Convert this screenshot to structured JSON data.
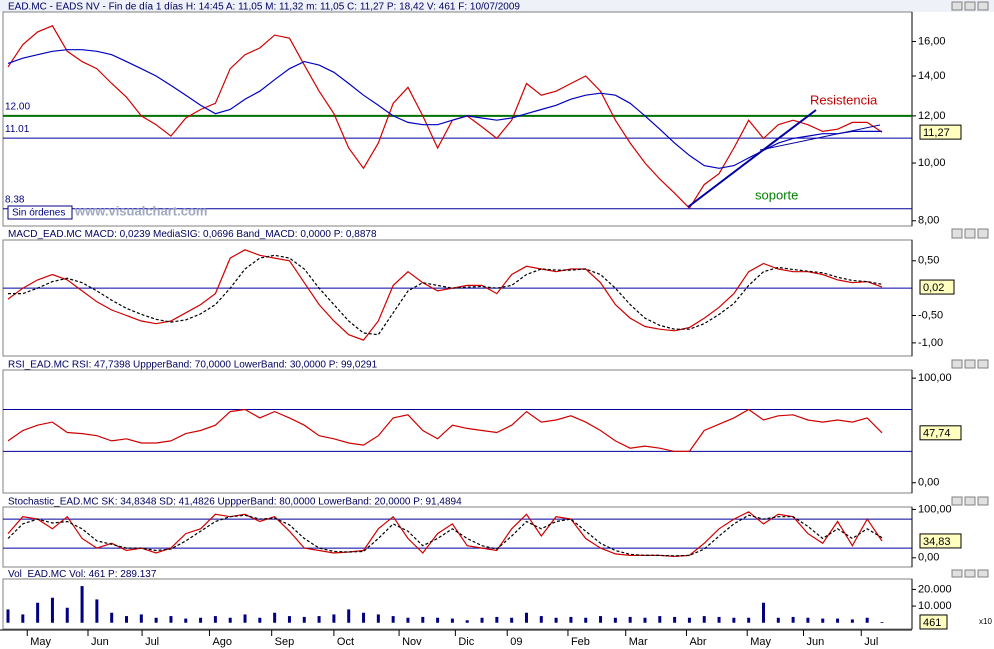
{
  "chart_data": [
    {
      "type": "line",
      "title": "EAD.MC - EADS NV - Fin de día 1 días H: 14:45 A: 11,05 M: 11,32 m: 11,05 C: 11,27 P: 18,42 V: 461 F: 10/07/2009",
      "log": true,
      "ylim": [
        7.84,
        17.93
      ],
      "yticks": [
        {
          "value": 8,
          "label": "8,00"
        },
        {
          "value": 10,
          "label": "10,00"
        },
        {
          "value": 12,
          "label": "12,00"
        },
        {
          "value": 14,
          "label": "14,00"
        },
        {
          "value": 16,
          "label": "16,00"
        }
      ],
      "series": [
        {
          "color": "#d00000",
          "values": [
            14.5,
            15.8,
            16.6,
            17.0,
            15.4,
            14.8,
            14.4,
            13.6,
            12.9,
            12.0,
            11.6,
            11.1,
            11.9,
            12.3,
            12.6,
            14.4,
            15.2,
            15.6,
            16.4,
            16.2,
            14.6,
            13.2,
            12.1,
            10.6,
            9.8,
            10.8,
            12.6,
            13.4,
            12.0,
            10.6,
            11.8,
            12.0,
            11.5,
            11.0,
            11.8,
            13.6,
            13.0,
            13.2,
            13.6,
            14.0,
            13.2,
            11.8,
            10.8,
            10.0,
            9.4,
            8.9,
            8.4,
            9.2,
            9.6,
            10.6,
            11.8,
            11.0,
            11.6,
            11.8,
            11.6,
            11.3,
            11.4,
            11.7,
            11.7,
            11.27
          ]
        },
        {
          "color": "#0000c0",
          "values": [
            14.7,
            15.0,
            15.2,
            15.4,
            15.5,
            15.5,
            15.4,
            15.2,
            14.8,
            14.4,
            14.0,
            13.5,
            13.0,
            12.5,
            12.1,
            12.3,
            12.8,
            13.2,
            13.8,
            14.4,
            14.8,
            14.6,
            14.2,
            13.6,
            13.0,
            12.5,
            12.0,
            11.7,
            11.6,
            11.6,
            11.8,
            12.0,
            11.9,
            11.8,
            11.9,
            12.1,
            12.3,
            12.5,
            12.8,
            13.0,
            13.1,
            13.0,
            12.6,
            12.0,
            11.4,
            10.8,
            10.3,
            9.9,
            9.8,
            9.9,
            10.2,
            10.5,
            10.8,
            11.0,
            11.1,
            11.2,
            11.2,
            11.3,
            11.3,
            11.3
          ]
        }
      ],
      "bands": [
        {
          "value": 12.0,
          "label": "12.00",
          "color": "#007000"
        },
        {
          "value": 11.01,
          "label": "11.01",
          "color": "#0000a0"
        },
        {
          "value": 8.38,
          "label": "8.38",
          "color": "#0000a0"
        }
      ],
      "last_label": "11,27",
      "annotations": [
        {
          "text": "Resistencia",
          "color": "#c00000"
        },
        {
          "text": "soporte",
          "color": "#008000"
        }
      ],
      "status": "Sin órdenes",
      "watermark": "www.visualchart.com"
    },
    {
      "type": "line",
      "title": "MACD_EAD.MC MACD: 0,0239 MediaSIG: 0,0696 Band_MACD: 0,0000 P: 0,8878",
      "ylim": [
        -1.24,
        0.88
      ],
      "yticks": [
        {
          "value": -1,
          "label": "-1,00"
        },
        {
          "value": -0.5,
          "label": "-0,50"
        },
        {
          "value": 0.5,
          "label": "0,50"
        }
      ],
      "series": [
        {
          "color": "#d00000",
          "values": [
            -0.2,
            0.0,
            0.15,
            0.25,
            0.15,
            -0.05,
            -0.25,
            -0.4,
            -0.5,
            -0.6,
            -0.65,
            -0.6,
            -0.45,
            -0.3,
            -0.1,
            0.55,
            0.7,
            0.6,
            0.55,
            0.5,
            0.1,
            -0.3,
            -0.6,
            -0.85,
            -0.95,
            -0.6,
            0.05,
            0.3,
            0.1,
            -0.05,
            0.0,
            0.05,
            0.05,
            -0.1,
            0.25,
            0.4,
            0.35,
            0.3,
            0.35,
            0.35,
            0.1,
            -0.3,
            -0.55,
            -0.7,
            -0.75,
            -0.78,
            -0.72,
            -0.55,
            -0.35,
            -0.1,
            0.3,
            0.45,
            0.35,
            0.3,
            0.3,
            0.25,
            0.15,
            0.1,
            0.12,
            0.02
          ]
        },
        {
          "color": "#000000",
          "dash": true,
          "values": [
            -0.1,
            -0.1,
            0.0,
            0.12,
            0.18,
            0.1,
            -0.05,
            -0.22,
            -0.37,
            -0.48,
            -0.57,
            -0.62,
            -0.58,
            -0.47,
            -0.3,
            0.0,
            0.35,
            0.55,
            0.6,
            0.55,
            0.35,
            0.0,
            -0.3,
            -0.6,
            -0.82,
            -0.85,
            -0.45,
            -0.05,
            0.1,
            0.05,
            0.0,
            0.02,
            0.03,
            0.0,
            0.05,
            0.25,
            0.35,
            0.33,
            0.33,
            0.35,
            0.25,
            0.0,
            -0.3,
            -0.55,
            -0.68,
            -0.75,
            -0.75,
            -0.65,
            -0.48,
            -0.28,
            0.05,
            0.3,
            0.38,
            0.34,
            0.31,
            0.28,
            0.2,
            0.14,
            0.12,
            0.07
          ]
        }
      ],
      "bands": [
        {
          "value": 0,
          "color": "#0000a0"
        }
      ],
      "last_label": "0,02"
    },
    {
      "type": "line",
      "title": "RSI_EAD.MC RSI: 47,7398 UppperBand: 70,0000 LowerBand: 30,0000 P: 99,0291",
      "ylim": [
        -9.8,
        107.8
      ],
      "yticks": [
        {
          "value": 0,
          "label": "0,00"
        },
        {
          "value": 100,
          "label": "100,00"
        }
      ],
      "series": [
        {
          "color": "#d00000",
          "values": [
            40,
            50,
            55,
            58,
            48,
            47,
            45,
            40,
            42,
            38,
            38,
            40,
            47,
            50,
            55,
            68,
            70,
            62,
            68,
            62,
            55,
            45,
            42,
            38,
            36,
            45,
            62,
            65,
            50,
            42,
            55,
            52,
            50,
            48,
            55,
            68,
            58,
            60,
            64,
            58,
            50,
            40,
            33,
            35,
            33,
            30,
            30,
            50,
            56,
            62,
            70,
            60,
            64,
            65,
            60,
            58,
            60,
            58,
            62,
            47.74
          ]
        }
      ],
      "bands": [
        {
          "value": 70,
          "color": "#0000a0"
        },
        {
          "value": 30,
          "color": "#0000a0"
        }
      ],
      "last_label": "47,74"
    },
    {
      "type": "line",
      "title": "Stochastic_EAD.MC SK: 34,8348 SD: 41,4826 UppperBand: 80,0000 LowerBand: 20,0000 P: 91,4894",
      "ylim": [
        -19,
        105
      ],
      "yticks": [
        {
          "value": 0,
          "label": "0,00"
        },
        {
          "value": 100,
          "label": "100,00"
        }
      ],
      "series": [
        {
          "color": "#d00000",
          "values": [
            50,
            85,
            80,
            60,
            85,
            40,
            20,
            30,
            15,
            20,
            10,
            20,
            50,
            60,
            90,
            85,
            90,
            75,
            85,
            55,
            20,
            15,
            10,
            12,
            15,
            60,
            85,
            40,
            10,
            50,
            70,
            25,
            20,
            15,
            60,
            90,
            45,
            85,
            80,
            40,
            20,
            8,
            5,
            5,
            5,
            3,
            5,
            30,
            60,
            80,
            95,
            70,
            90,
            85,
            50,
            30,
            75,
            25,
            80,
            34.83
          ]
        },
        {
          "color": "#000000",
          "dash": true,
          "values": [
            40,
            70,
            80,
            72,
            75,
            60,
            35,
            28,
            20,
            20,
            15,
            18,
            35,
            55,
            75,
            85,
            88,
            80,
            82,
            68,
            40,
            20,
            13,
            12,
            13,
            40,
            70,
            55,
            25,
            40,
            60,
            40,
            25,
            18,
            45,
            75,
            60,
            75,
            80,
            55,
            30,
            15,
            7,
            5,
            5,
            4,
            5,
            18,
            45,
            70,
            88,
            80,
            85,
            85,
            65,
            40,
            60,
            40,
            60,
            41.48
          ]
        }
      ],
      "bands": [
        {
          "value": 80,
          "color": "#0000a0"
        },
        {
          "value": 20,
          "color": "#0000a0"
        }
      ],
      "last_label": "34,83"
    },
    {
      "type": "bar",
      "title": "Vol_EAD.MC Vol: 461 P: 289.137",
      "ylim": [
        -3750,
        26250
      ],
      "yticks": [
        {
          "value": 10000,
          "label": "10.000"
        },
        {
          "value": 20000,
          "label": "20.000"
        }
      ],
      "series": [
        {
          "color": "#000080",
          "values": [
            8000,
            5000,
            12000,
            15000,
            9000,
            22000,
            14000,
            6000,
            4000,
            5000,
            3000,
            4000,
            2500,
            3000,
            4000,
            3000,
            5000,
            3000,
            6000,
            4000,
            3500,
            4000,
            5000,
            8000,
            6000,
            5000,
            4000,
            3000,
            3500,
            3000,
            2500,
            1500,
            3000,
            3500,
            3000,
            6000,
            4000,
            3000,
            3500,
            3000,
            4000,
            3000,
            3500,
            3000,
            4000,
            3500,
            3000,
            4000,
            3500,
            3000,
            3000,
            12000,
            3000,
            3500,
            3000,
            2500,
            2500,
            2000,
            3000,
            461
          ]
        }
      ],
      "last_label": "461",
      "unit_label": "x10",
      "xticks": [
        {
          "value": 1.3,
          "label": "May"
        },
        {
          "value": 5.4,
          "label": "Jun"
        },
        {
          "value": 9.05,
          "label": "Jul"
        },
        {
          "value": 13.6,
          "label": "Ago"
        },
        {
          "value": 17.8,
          "label": "Sep"
        },
        {
          "value": 22,
          "label": "Oct"
        },
        {
          "value": 26.4,
          "label": "Nov"
        },
        {
          "value": 30.2,
          "label": "Dic"
        },
        {
          "value": 33.7,
          "label": "09"
        },
        {
          "value": 37.8,
          "label": "Feb"
        },
        {
          "value": 41.7,
          "label": "Mar"
        },
        {
          "value": 45.8,
          "label": "Abr"
        },
        {
          "value": 49.9,
          "label": "May"
        },
        {
          "value": 53.7,
          "label": "Jun"
        },
        {
          "value": 57.6,
          "label": "Jul"
        }
      ]
    }
  ]
}
